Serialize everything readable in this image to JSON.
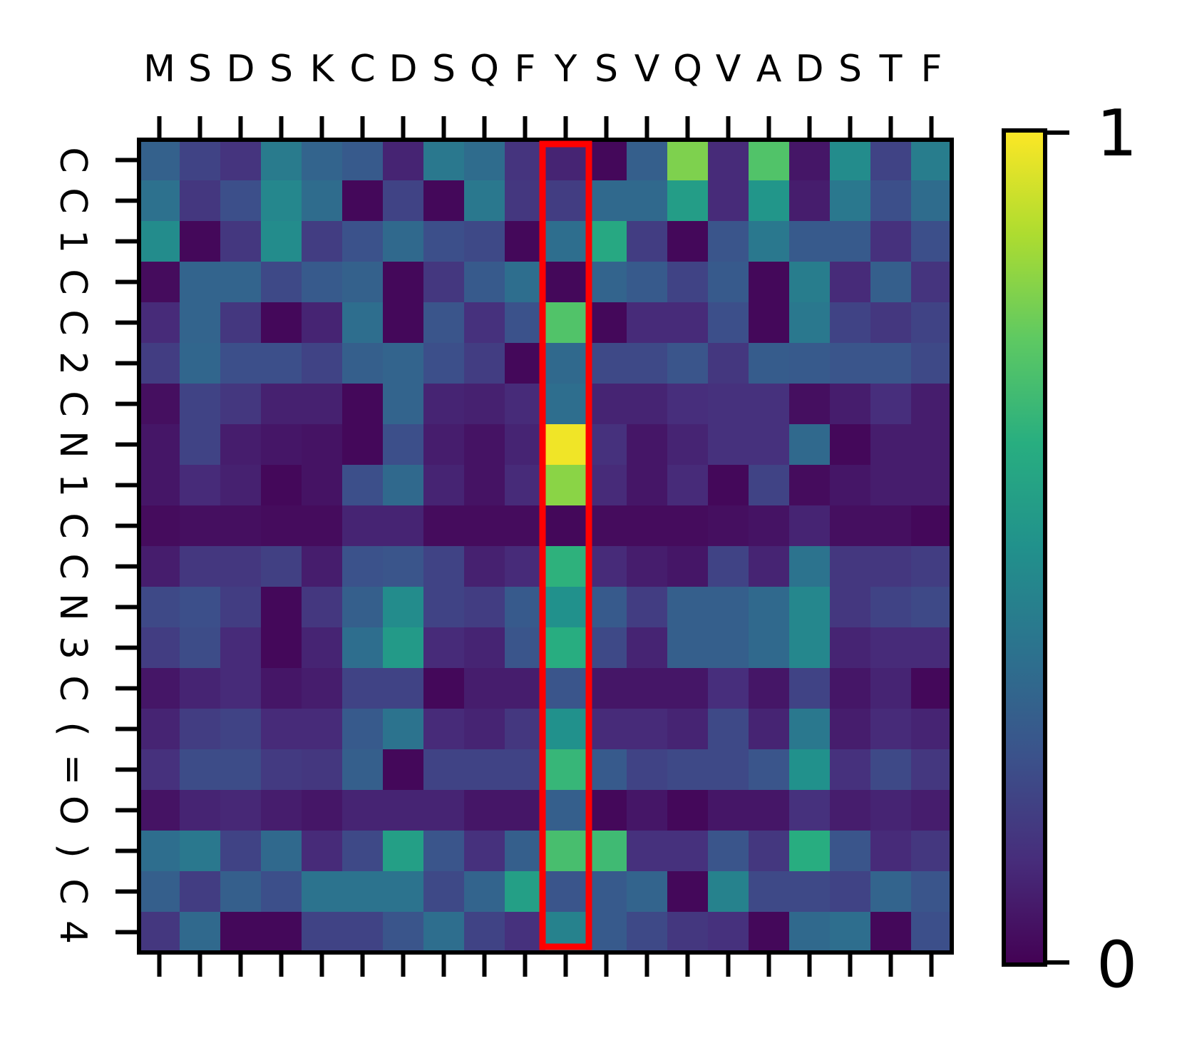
{
  "chart_data": {
    "type": "heatmap",
    "title": "",
    "xlabel": "",
    "ylabel": "",
    "x_tick_labels": [
      "M",
      "S",
      "D",
      "S",
      "K",
      "C",
      "D",
      "S",
      "Q",
      "F",
      "Y",
      "S",
      "V",
      "Q",
      "V",
      "A",
      "D",
      "S",
      "T",
      "F"
    ],
    "y_tick_labels": [
      "C",
      "C",
      "1",
      "C",
      "C",
      "2",
      "C",
      "N",
      "1",
      "C",
      "C",
      "N",
      "3",
      "C",
      "(",
      "=",
      "O",
      ")",
      "C",
      "4"
    ],
    "x_ticks_position": "top-and-bottom",
    "y_tick_label_rotation": 90,
    "colormap": "viridis",
    "colorbar": {
      "min": 0,
      "max": 1,
      "min_label": "0",
      "max_label": "1",
      "placement": "right"
    },
    "highlight": {
      "column_index": 10,
      "column_label": "Y",
      "color": "#ff0000"
    },
    "values": [
      [
        0.31,
        0.2,
        0.15,
        0.41,
        0.32,
        0.28,
        0.1,
        0.4,
        0.35,
        0.15,
        0.1,
        0.02,
        0.3,
        0.8,
        0.12,
        0.72,
        0.06,
        0.48,
        0.2,
        0.42
      ],
      [
        0.37,
        0.16,
        0.24,
        0.46,
        0.35,
        0.02,
        0.2,
        0.02,
        0.4,
        0.16,
        0.18,
        0.34,
        0.34,
        0.55,
        0.12,
        0.52,
        0.08,
        0.4,
        0.24,
        0.35
      ],
      [
        0.48,
        0.02,
        0.16,
        0.48,
        0.18,
        0.25,
        0.34,
        0.24,
        0.22,
        0.02,
        0.36,
        0.6,
        0.18,
        0.02,
        0.26,
        0.4,
        0.28,
        0.28,
        0.14,
        0.24
      ],
      [
        0.03,
        0.32,
        0.32,
        0.22,
        0.28,
        0.31,
        0.02,
        0.16,
        0.28,
        0.36,
        0.02,
        0.32,
        0.28,
        0.2,
        0.28,
        0.02,
        0.42,
        0.12,
        0.3,
        0.15
      ],
      [
        0.12,
        0.32,
        0.16,
        0.02,
        0.1,
        0.36,
        0.02,
        0.26,
        0.14,
        0.25,
        0.72,
        0.02,
        0.12,
        0.12,
        0.24,
        0.02,
        0.4,
        0.2,
        0.16,
        0.2
      ],
      [
        0.18,
        0.33,
        0.24,
        0.24,
        0.2,
        0.3,
        0.32,
        0.24,
        0.18,
        0.02,
        0.34,
        0.22,
        0.22,
        0.26,
        0.16,
        0.29,
        0.28,
        0.26,
        0.26,
        0.22
      ],
      [
        0.04,
        0.2,
        0.16,
        0.09,
        0.09,
        0.02,
        0.32,
        0.1,
        0.09,
        0.12,
        0.36,
        0.1,
        0.1,
        0.13,
        0.14,
        0.14,
        0.04,
        0.08,
        0.13,
        0.08
      ],
      [
        0.06,
        0.2,
        0.08,
        0.06,
        0.05,
        0.02,
        0.24,
        0.08,
        0.05,
        0.1,
        0.98,
        0.14,
        0.06,
        0.1,
        0.14,
        0.14,
        0.34,
        0.02,
        0.08,
        0.08
      ],
      [
        0.06,
        0.12,
        0.09,
        0.02,
        0.05,
        0.24,
        0.34,
        0.1,
        0.05,
        0.12,
        0.82,
        0.12,
        0.06,
        0.12,
        0.02,
        0.2,
        0.03,
        0.06,
        0.08,
        0.08
      ],
      [
        0.03,
        0.04,
        0.04,
        0.03,
        0.03,
        0.1,
        0.1,
        0.03,
        0.03,
        0.03,
        0.02,
        0.03,
        0.03,
        0.03,
        0.04,
        0.05,
        0.1,
        0.04,
        0.04,
        0.02
      ],
      [
        0.08,
        0.16,
        0.16,
        0.19,
        0.08,
        0.25,
        0.26,
        0.2,
        0.09,
        0.12,
        0.64,
        0.12,
        0.08,
        0.06,
        0.2,
        0.1,
        0.38,
        0.16,
        0.16,
        0.18
      ],
      [
        0.22,
        0.24,
        0.18,
        0.02,
        0.16,
        0.3,
        0.48,
        0.2,
        0.18,
        0.28,
        0.5,
        0.28,
        0.18,
        0.3,
        0.3,
        0.34,
        0.46,
        0.16,
        0.2,
        0.22
      ],
      [
        0.18,
        0.23,
        0.12,
        0.02,
        0.1,
        0.36,
        0.54,
        0.12,
        0.1,
        0.26,
        0.62,
        0.22,
        0.1,
        0.3,
        0.3,
        0.34,
        0.46,
        0.1,
        0.12,
        0.12
      ],
      [
        0.06,
        0.1,
        0.12,
        0.06,
        0.08,
        0.2,
        0.2,
        0.02,
        0.08,
        0.08,
        0.26,
        0.06,
        0.06,
        0.06,
        0.13,
        0.06,
        0.2,
        0.06,
        0.1,
        0.02
      ],
      [
        0.1,
        0.18,
        0.2,
        0.12,
        0.12,
        0.28,
        0.38,
        0.12,
        0.1,
        0.16,
        0.5,
        0.12,
        0.12,
        0.1,
        0.22,
        0.1,
        0.4,
        0.08,
        0.12,
        0.1
      ],
      [
        0.14,
        0.23,
        0.23,
        0.17,
        0.16,
        0.3,
        0.02,
        0.2,
        0.2,
        0.2,
        0.66,
        0.28,
        0.2,
        0.22,
        0.22,
        0.26,
        0.5,
        0.14,
        0.22,
        0.16
      ],
      [
        0.05,
        0.1,
        0.11,
        0.08,
        0.06,
        0.1,
        0.1,
        0.1,
        0.06,
        0.06,
        0.3,
        0.02,
        0.06,
        0.02,
        0.06,
        0.06,
        0.14,
        0.08,
        0.1,
        0.08
      ],
      [
        0.36,
        0.4,
        0.2,
        0.34,
        0.12,
        0.22,
        0.56,
        0.26,
        0.14,
        0.3,
        0.7,
        0.68,
        0.14,
        0.14,
        0.26,
        0.16,
        0.62,
        0.26,
        0.12,
        0.16
      ],
      [
        0.3,
        0.18,
        0.3,
        0.24,
        0.38,
        0.38,
        0.38,
        0.22,
        0.32,
        0.56,
        0.26,
        0.28,
        0.32,
        0.02,
        0.44,
        0.22,
        0.22,
        0.2,
        0.32,
        0.26
      ],
      [
        0.16,
        0.34,
        0.02,
        0.02,
        0.2,
        0.2,
        0.26,
        0.36,
        0.2,
        0.14,
        0.44,
        0.28,
        0.22,
        0.16,
        0.14,
        0.02,
        0.34,
        0.36,
        0.02,
        0.24
      ]
    ]
  }
}
